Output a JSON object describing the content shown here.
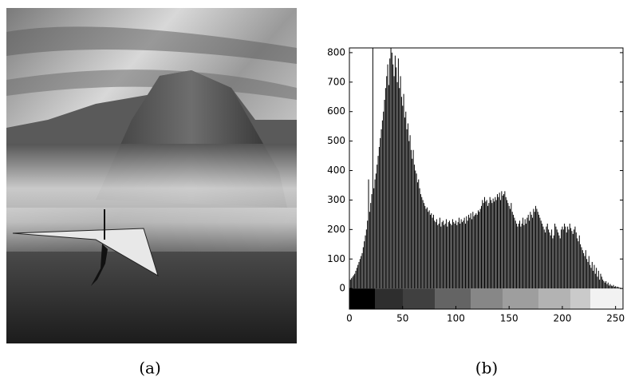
{
  "image_caption": "(a)",
  "chart_data": {
    "type": "histogram",
    "caption": "(b)",
    "color": "#000000",
    "xlim": [
      0,
      257
    ],
    "ylim": [
      -70,
      816
    ],
    "xticks": [
      0,
      50,
      100,
      150,
      200,
      250
    ],
    "yticks": [
      0,
      100,
      200,
      300,
      400,
      500,
      600,
      700,
      800
    ],
    "x": [
      0,
      1,
      2,
      3,
      4,
      5,
      6,
      7,
      8,
      9,
      10,
      11,
      12,
      13,
      14,
      15,
      16,
      17,
      18,
      19,
      20,
      21,
      22,
      23,
      24,
      25,
      26,
      27,
      28,
      29,
      30,
      31,
      32,
      33,
      34,
      35,
      36,
      37,
      38,
      39,
      40,
      41,
      42,
      43,
      44,
      45,
      46,
      47,
      48,
      49,
      50,
      51,
      52,
      53,
      54,
      55,
      56,
      57,
      58,
      59,
      60,
      61,
      62,
      63,
      64,
      65,
      66,
      67,
      68,
      69,
      70,
      71,
      72,
      73,
      74,
      75,
      76,
      77,
      78,
      79,
      80,
      81,
      82,
      83,
      84,
      85,
      86,
      87,
      88,
      89,
      90,
      91,
      92,
      93,
      94,
      95,
      96,
      97,
      98,
      99,
      100,
      101,
      102,
      103,
      104,
      105,
      106,
      107,
      108,
      109,
      110,
      111,
      112,
      113,
      114,
      115,
      116,
      117,
      118,
      119,
      120,
      121,
      122,
      123,
      124,
      125,
      126,
      127,
      128,
      129,
      130,
      131,
      132,
      133,
      134,
      135,
      136,
      137,
      138,
      139,
      140,
      141,
      142,
      143,
      144,
      145,
      146,
      147,
      148,
      149,
      150,
      151,
      152,
      153,
      154,
      155,
      156,
      157,
      158,
      159,
      160,
      161,
      162,
      163,
      164,
      165,
      166,
      167,
      168,
      169,
      170,
      171,
      172,
      173,
      174,
      175,
      176,
      177,
      178,
      179,
      180,
      181,
      182,
      183,
      184,
      185,
      186,
      187,
      188,
      189,
      190,
      191,
      192,
      193,
      194,
      195,
      196,
      197,
      198,
      199,
      200,
      201,
      202,
      203,
      204,
      205,
      206,
      207,
      208,
      209,
      210,
      211,
      212,
      213,
      214,
      215,
      216,
      217,
      218,
      219,
      220,
      221,
      222,
      223,
      224,
      225,
      226,
      227,
      228,
      229,
      230,
      231,
      232,
      233,
      234,
      235,
      236,
      237,
      238,
      239,
      240,
      241,
      242,
      243,
      244,
      245,
      246,
      247,
      248,
      249,
      250,
      251,
      252,
      253,
      254,
      255
    ],
    "values": [
      20,
      30,
      35,
      40,
      45,
      50,
      60,
      70,
      80,
      90,
      100,
      110,
      120,
      140,
      160,
      180,
      200,
      230,
      370,
      260,
      290,
      320,
      820,
      340,
      370,
      390,
      420,
      450,
      480,
      510,
      540,
      570,
      600,
      640,
      680,
      720,
      760,
      690,
      780,
      820,
      800,
      760,
      720,
      790,
      750,
      700,
      780,
      680,
      720,
      650,
      620,
      660,
      580,
      600,
      540,
      560,
      500,
      520,
      470,
      440,
      470,
      420,
      400,
      390,
      360,
      370,
      340,
      320,
      310,
      300,
      290,
      280,
      270,
      275,
      260,
      265,
      250,
      255,
      240,
      250,
      230,
      225,
      235,
      215,
      220,
      240,
      210,
      225,
      230,
      215,
      220,
      235,
      210,
      225,
      230,
      220,
      215,
      235,
      225,
      220,
      230,
      215,
      225,
      240,
      220,
      235,
      225,
      230,
      240,
      220,
      245,
      230,
      250,
      240,
      255,
      235,
      260,
      245,
      250,
      255,
      250,
      265,
      260,
      270,
      280,
      300,
      290,
      310,
      295,
      300,
      280,
      290,
      310,
      300,
      290,
      305,
      295,
      310,
      300,
      320,
      310,
      325,
      300,
      330,
      315,
      320,
      330,
      310,
      300,
      290,
      280,
      270,
      290,
      260,
      250,
      240,
      230,
      220,
      210,
      220,
      230,
      210,
      220,
      240,
      215,
      235,
      220,
      240,
      250,
      230,
      260,
      250,
      240,
      270,
      260,
      280,
      270,
      260,
      250,
      240,
      230,
      220,
      210,
      200,
      190,
      210,
      220,
      200,
      190,
      180,
      200,
      170,
      180,
      220,
      210,
      200,
      190,
      180,
      170,
      200,
      210,
      200,
      220,
      210,
      190,
      210,
      200,
      220,
      205,
      195,
      185,
      200,
      210,
      190,
      170,
      160,
      180,
      150,
      140,
      130,
      120,
      110,
      130,
      100,
      90,
      110,
      80,
      70,
      90,
      60,
      80,
      50,
      70,
      40,
      60,
      30,
      50,
      40,
      30,
      25,
      20,
      25,
      15,
      20,
      10,
      15,
      10,
      8,
      12,
      6,
      8,
      5,
      6,
      4,
      3,
      2
    ]
  }
}
